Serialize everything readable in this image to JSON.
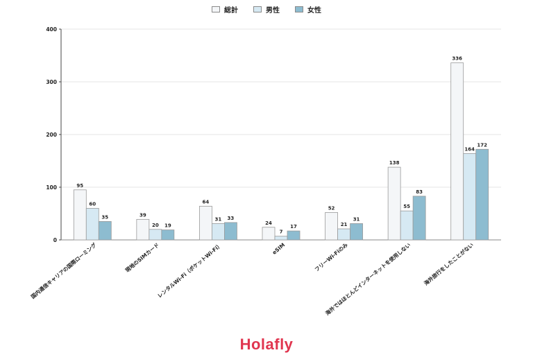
{
  "legend": [
    {
      "label": "総計",
      "color": "#f4f6f8"
    },
    {
      "label": "男性",
      "color": "#d6e9f3"
    },
    {
      "label": "女性",
      "color": "#8dbcd0"
    }
  ],
  "brand": "Holafly",
  "chart_data": {
    "type": "bar",
    "title": "",
    "xlabel": "",
    "ylabel": "",
    "ylim": [
      0,
      400
    ],
    "yticks": [
      0,
      100,
      200,
      300,
      400
    ],
    "grid": true,
    "legend_position": "top-center",
    "categories": [
      "国内通信キャリアの国際ローミング",
      "現地のSIMカード",
      "レンタルWi-Fi（ポケットWi-Fi）",
      "eSIM",
      "フリーWi-Fiのみ",
      "海外ではほとんどインターネットを使用しない",
      "海外旅行をしたことがない"
    ],
    "series": [
      {
        "name": "総計",
        "values": [
          95,
          39,
          64,
          24,
          52,
          138,
          336
        ],
        "color": "#f4f6f8"
      },
      {
        "name": "男性",
        "values": [
          60,
          20,
          31,
          7,
          21,
          55,
          164
        ],
        "color": "#d6e9f3"
      },
      {
        "name": "女性",
        "values": [
          35,
          19,
          33,
          17,
          31,
          83,
          172
        ],
        "color": "#8dbcd0"
      }
    ]
  }
}
